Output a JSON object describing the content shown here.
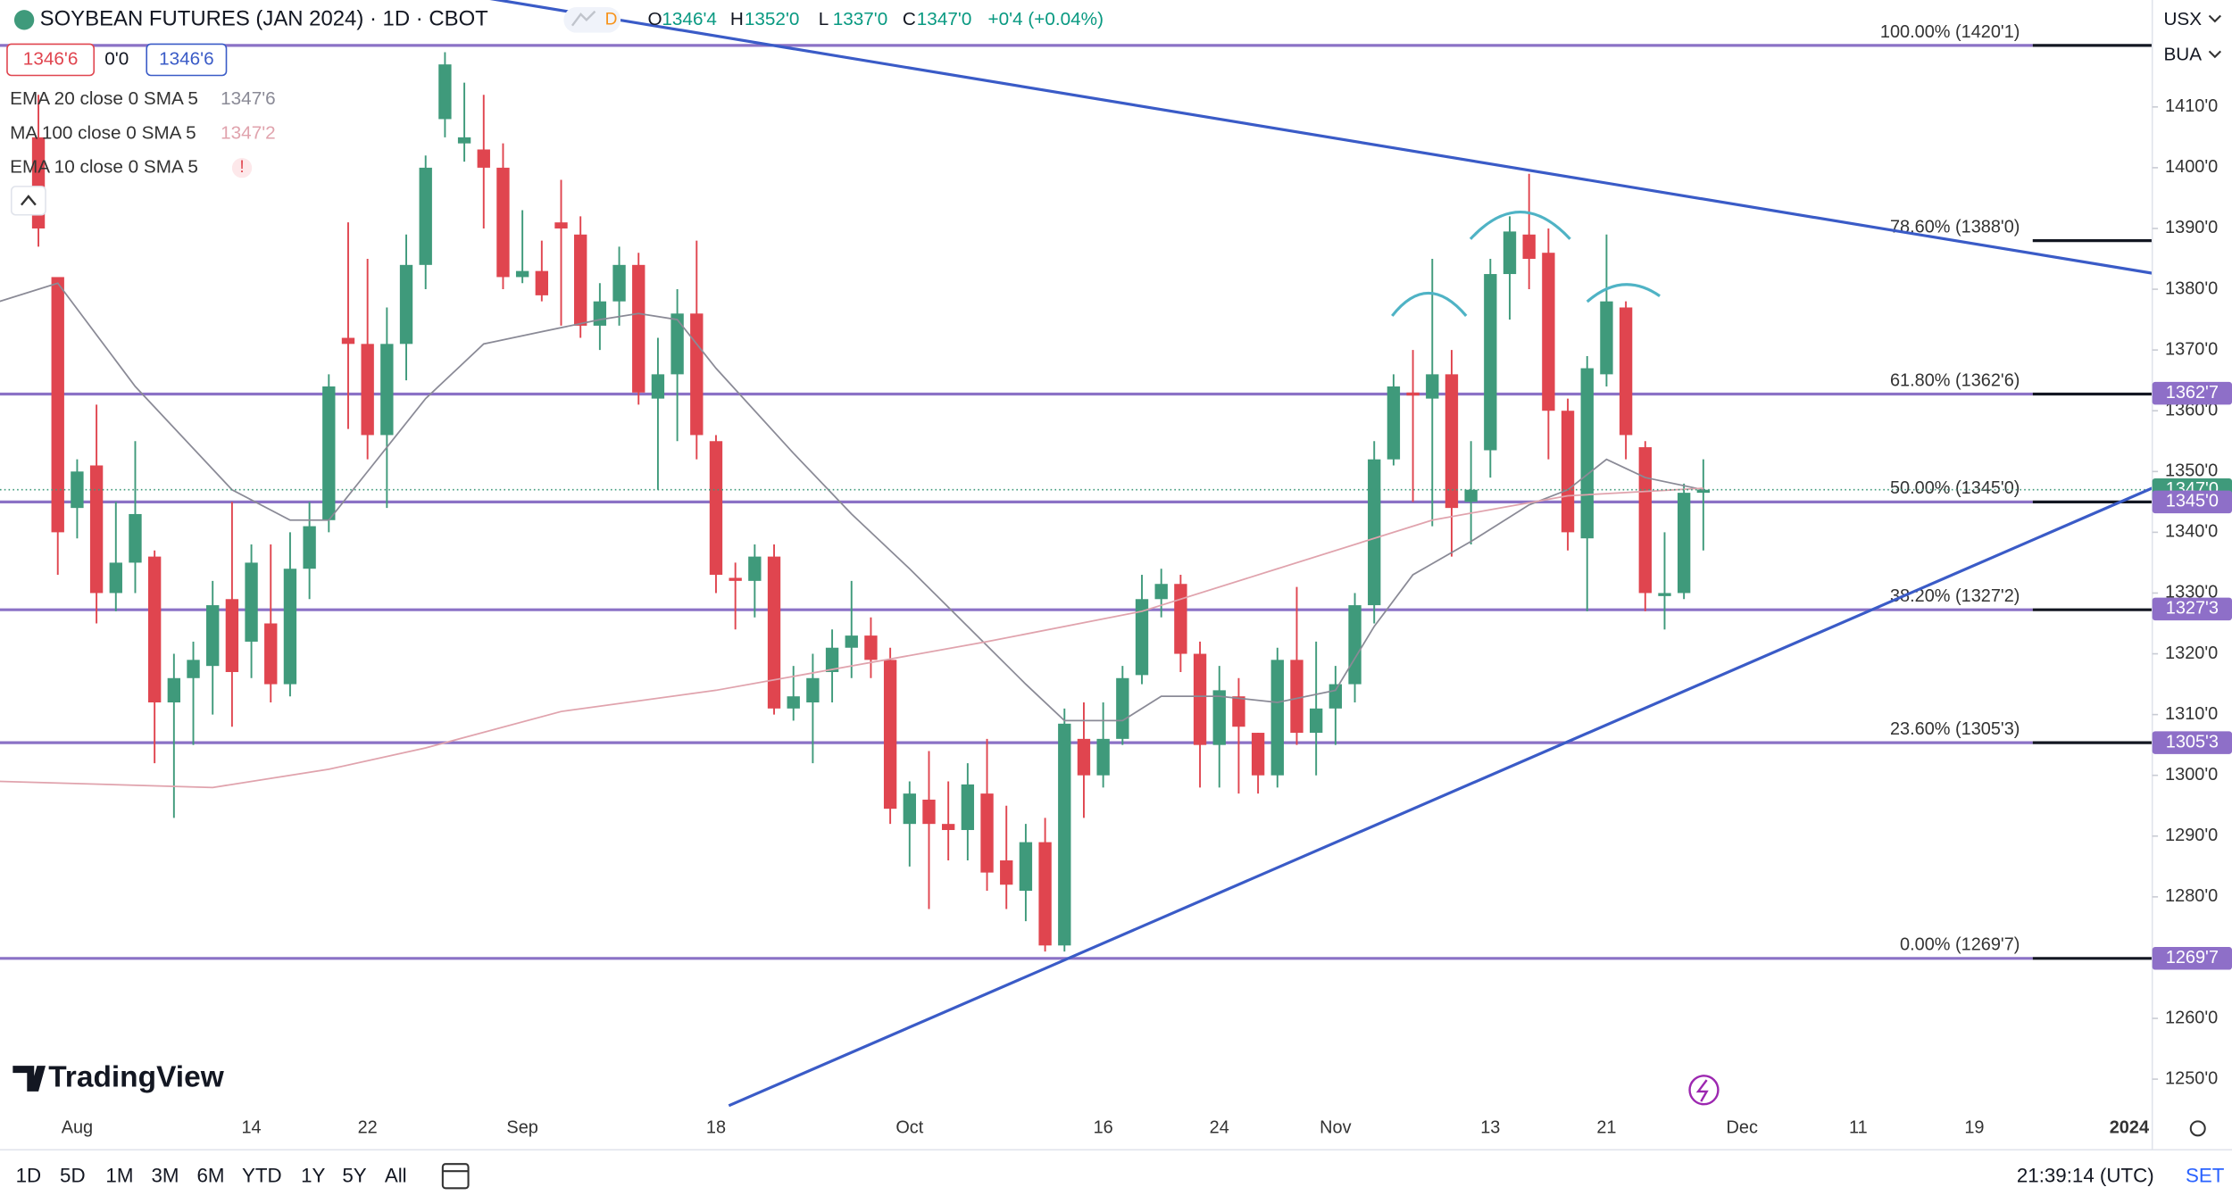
{
  "chart_data": {
    "type": "candlestick",
    "title": "SOYBEAN FUTURES (JAN 2024) · 1D · CBOT",
    "up_color": "#3f9a7b",
    "down_color": "#e0454f",
    "categories": [
      null,
      null,
      "Aug",
      null,
      null,
      null,
      null,
      null,
      null,
      null,
      null,
      "14",
      null,
      null,
      null,
      null,
      null,
      "22",
      null,
      null,
      null,
      null,
      null,
      null,
      null,
      "Sep",
      null,
      null,
      null,
      null,
      null,
      null,
      null,
      null,
      null,
      "18",
      null,
      null,
      null,
      null,
      null,
      null,
      null,
      null,
      null,
      "Oct",
      null,
      null,
      null,
      null,
      null,
      null,
      null,
      null,
      null,
      "16",
      null,
      null,
      null,
      null,
      null,
      "24",
      null,
      null,
      null,
      null,
      null,
      "Nov",
      null,
      null,
      null,
      null,
      null,
      null,
      null,
      "13",
      null,
      null,
      null,
      null,
      null,
      "21",
      null,
      null,
      null,
      null,
      null,
      null,
      "Dec",
      null,
      null,
      null,
      null,
      null,
      "11",
      null,
      null,
      null,
      null,
      null,
      "19",
      null,
      null,
      null,
      null,
      null,
      null,
      null,
      "2024"
    ],
    "open": [
      1405,
      1382,
      1344,
      1351,
      1330,
      1335,
      1336,
      1312,
      1316,
      1318,
      1329,
      1322,
      1325,
      1315,
      1334,
      1342,
      1372,
      1371,
      1356,
      1371,
      1384,
      1408,
      1404,
      1403,
      1400,
      1382,
      1383,
      1391,
      1389,
      1374,
      1378,
      1384,
      1362,
      1366,
      1376,
      1355,
      1332.5,
      1332,
      1336,
      1311,
      1312,
      1317,
      1321,
      1323,
      1319,
      1292,
      1296,
      1292,
      1291,
      1297,
      1286,
      1281,
      1289,
      1272,
      1306,
      1300,
      1306,
      1316.5,
      1329,
      1331.5,
      1320,
      1305,
      1313,
      1307,
      1300,
      1319,
      1307,
      1311,
      1315,
      1328,
      1352,
      1363,
      1362,
      1366,
      1345,
      1353.5,
      1382.5,
      1389,
      1386,
      1360,
      1339,
      1366,
      1377,
      1354,
      1329.5,
      1330,
      1346.5,
      null,
      null,
      null,
      null,
      null,
      null,
      null,
      null,
      null,
      null,
      null,
      null,
      null,
      null,
      null,
      null,
      null,
      null,
      null,
      null,
      null,
      null
    ],
    "high": [
      1412,
      1382,
      1352,
      1361,
      1345,
      1355,
      1337,
      1320,
      1322,
      1332,
      1345,
      1338,
      1338,
      1340,
      1345,
      1366,
      1391,
      1385,
      1377,
      1389,
      1402,
      1419,
      1414,
      1412,
      1404,
      1393,
      1388,
      1398,
      1392,
      1381,
      1387,
      1386,
      1372,
      1380,
      1388,
      1356,
      1335,
      1338,
      1338,
      1318,
      1320,
      1324,
      1332,
      1326,
      1321,
      1299,
      1304,
      1299,
      1302,
      1306,
      1295,
      1292,
      1293,
      1311,
      1312,
      1312,
      1318,
      1333,
      1334,
      1333,
      1322,
      1318,
      1316,
      1307,
      1321,
      1331,
      1322,
      1318,
      1330,
      1355,
      1366,
      1370,
      1385,
      1370,
      1355,
      1385,
      1392,
      1399,
      1390,
      1362,
      1369,
      1389,
      1378,
      1355,
      1340,
      1348,
      1352,
      null,
      null,
      null,
      null,
      null,
      null,
      null,
      null,
      null,
      null,
      null,
      null,
      null,
      null,
      null,
      null,
      null,
      null,
      null,
      null,
      null,
      null
    ],
    "low": [
      1387,
      1333,
      1339,
      1325,
      1327,
      1330,
      1302,
      1293,
      1305,
      1310,
      1308,
      1316,
      1312,
      1313,
      1329,
      1340,
      1357,
      1352,
      1344,
      1365,
      1380,
      1405,
      1401,
      1390,
      1380,
      1381,
      1378,
      1374,
      1372,
      1370,
      1374,
      1361,
      1347,
      1355,
      1352,
      1330,
      1324,
      1326,
      1310,
      1309,
      1302,
      1312,
      1316,
      1316,
      1292,
      1285,
      1278,
      1286,
      1286,
      1281,
      1278,
      1276,
      1271,
      1271,
      1293,
      1298,
      1305,
      1315,
      1326,
      1317,
      1298,
      1298,
      1297,
      1297,
      1298,
      1305,
      1300,
      1305,
      1312,
      1325,
      1351,
      1345,
      1341,
      1336,
      1338,
      1349,
      1375,
      1380,
      1352,
      1337,
      1327,
      1364,
      1352,
      1327,
      1324,
      1329,
      1337,
      null,
      null,
      null,
      null,
      null,
      null,
      null,
      null,
      null,
      null,
      null,
      null,
      null,
      null,
      null,
      null,
      null,
      null,
      null,
      null,
      null,
      null
    ],
    "close": [
      1390,
      1340,
      1350,
      1330,
      1335,
      1343,
      1312,
      1316,
      1319,
      1328,
      1317,
      1335,
      1315,
      1334,
      1341,
      1364,
      1371,
      1356,
      1371,
      1384,
      1400,
      1417,
      1405,
      1400,
      1382,
      1383,
      1379,
      1390,
      1374,
      1378,
      1384,
      1363,
      1366,
      1376,
      1356,
      1333,
      1332,
      1336,
      1311,
      1313,
      1316,
      1321,
      1323,
      1319,
      1294.5,
      1297,
      1292,
      1291,
      1298.5,
      1284,
      1282,
      1289,
      1272,
      1308.5,
      1300,
      1306,
      1316,
      1329,
      1331.5,
      1320,
      1305,
      1314,
      1308,
      1300,
      1319,
      1307,
      1311,
      1315,
      1328,
      1352,
      1364,
      1362.5,
      1366,
      1344,
      1347,
      1382.5,
      1389.5,
      1385,
      1360,
      1340,
      1367,
      1378,
      1356,
      1330,
      1330,
      1346.5,
      1347,
      null,
      null,
      null,
      null,
      null,
      null,
      null,
      null,
      null,
      null,
      null,
      null,
      null,
      null,
      null,
      null,
      null,
      null,
      null,
      null,
      null,
      null
    ],
    "series": [
      {
        "name": "EMA 20 close 0 SMA 5",
        "value_label": "1347'6",
        "color": "#8a8a96",
        "x": [
          -2,
          1,
          5,
          10,
          13,
          15,
          17,
          20,
          23,
          26,
          29,
          31,
          33,
          35,
          39,
          42,
          45,
          48,
          51,
          53,
          56,
          58,
          61,
          64,
          67,
          69,
          71,
          74,
          77,
          79,
          81,
          83,
          86
        ],
        "values": [
          1378,
          1381,
          1364,
          1347,
          1342,
          1342,
          1350,
          1362,
          1371,
          1373,
          1375,
          1376,
          1375,
          1367,
          1353,
          1343,
          1334,
          1324.5,
          1315,
          1309,
          1309,
          1313,
          1313,
          1312,
          1314,
          1324.5,
          1333,
          1338.5,
          1344.5,
          1347,
          1352,
          1349,
          1347
        ]
      },
      {
        "name": "MA 100 close 0 SMA 5",
        "value_label": "1347'2",
        "color": "#e0a3ad",
        "x": [
          -2,
          9,
          15,
          20,
          27,
          35,
          42,
          49,
          57,
          64,
          72,
          79,
          86
        ],
        "values": [
          1299,
          1298,
          1301,
          1304.5,
          1310.5,
          1314,
          1318,
          1322,
          1327,
          1334,
          1342,
          1346,
          1347.25
        ]
      },
      {
        "name": "EMA 10 close 0 SMA 5",
        "value_label": "!"
      }
    ],
    "ylim": [
      1245.4,
      1427.6
    ],
    "yticks": [
      {
        "value": 1250,
        "label": "1250'0"
      },
      {
        "value": 1260,
        "label": "1260'0"
      },
      {
        "value": 1270,
        "label": "1270'0"
      },
      {
        "value": 1280,
        "label": "1280'0"
      },
      {
        "value": 1290,
        "label": "1290'0"
      },
      {
        "value": 1300,
        "label": "1300'0"
      },
      {
        "value": 1310,
        "label": "1310'0"
      },
      {
        "value": 1320,
        "label": "1320'0"
      },
      {
        "value": 1330,
        "label": "1330'0"
      },
      {
        "value": 1340,
        "label": "1340'0"
      },
      {
        "value": 1350,
        "label": "1350'0"
      },
      {
        "value": 1360,
        "label": "1360'0"
      },
      {
        "value": 1370,
        "label": "1370'0"
      },
      {
        "value": 1380,
        "label": "1380'0"
      },
      {
        "value": 1390,
        "label": "1390'0"
      },
      {
        "value": 1400,
        "label": "1400'0"
      },
      {
        "value": 1410,
        "label": "1410'0"
      }
    ],
    "fib_color": "#8b72c6",
    "fib_levels": [
      {
        "value": 1420.125,
        "label": "100.00% (1420'1)",
        "full_line": true
      },
      {
        "value": 1388,
        "label": "78.60% (1388'0)",
        "full_line": false
      },
      {
        "value": 1362.75,
        "label": "61.80% (1362'6)",
        "full_line": true
      },
      {
        "value": 1345,
        "label": "50.00% (1345'0)",
        "full_line": true
      },
      {
        "value": 1327.25,
        "label": "38.20% (1327'2)",
        "full_line": true
      },
      {
        "value": 1305.375,
        "label": "23.60% (1305'3)",
        "full_line": true
      },
      {
        "value": 1269.875,
        "label": "0.00% (1269'7)",
        "full_line": true
      }
    ],
    "price_badges": [
      {
        "value": 1362.875,
        "label": "1362'7",
        "color": "#8e6fc8"
      },
      {
        "value": 1347,
        "label": "1347'0",
        "color": "#3f9a7b",
        "price_line": "dotted"
      },
      {
        "value": 1345,
        "label": "1345'0",
        "color": "#8e6fc8"
      },
      {
        "value": 1327.375,
        "label": "1327'3",
        "color": "#8e6fc8"
      },
      {
        "value": 1305.375,
        "label": "1305'3",
        "color": "#8e6fc8"
      },
      {
        "value": 1269.875,
        "label": "1269'7",
        "color": "#8e6fc8"
      }
    ]
  },
  "ui": {
    "flag": "D",
    "ohlc": [
      {
        "key": "O",
        "value": "1346'4"
      },
      {
        "key": "H",
        "value": "1352'0"
      },
      {
        "key": "L",
        "value": "1337'0"
      },
      {
        "key": "C",
        "value": "1347'0"
      }
    ],
    "change": "+0'4 (+0.04%)",
    "sell_price": "1346'6",
    "spread": "0'0",
    "buy_price": "1346'6",
    "currency": "USX",
    "unit": "BUA",
    "logo": "TradingView",
    "ranges": [
      "1D",
      "5D",
      "1M",
      "3M",
      "6M",
      "YTD",
      "1Y",
      "5Y",
      "All"
    ],
    "clock": "21:39:14 (UTC)",
    "scale": "SET"
  }
}
